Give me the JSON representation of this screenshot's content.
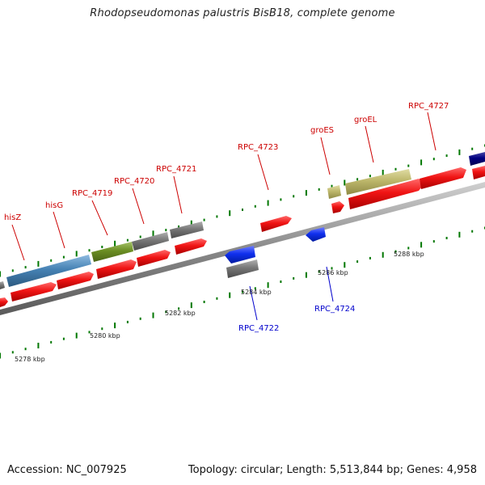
{
  "title": "Rhodopseudomonas palustris BisB18, complete genome",
  "footer": {
    "accession": "Accession: NC_007925",
    "summary": "Topology: circular; Length: 5,513,844 bp; Genes: 4,958"
  },
  "colors": {
    "cds": "#ee1111",
    "blue_gene": "#1133ee",
    "gray_gene": "#777777",
    "steelblue_gene": "#4682b4",
    "olive_gene": "#6b8e23",
    "khaki_gene": "#bdb76b",
    "navy_gene": "#000080",
    "ticks": "#007700",
    "top_labels": "#cc0000",
    "bottom_labels": "#0000cc"
  },
  "kbp_ticks": [
    "5278 kbp",
    "5280 kbp",
    "5282 kbp",
    "5284 kbp",
    "5286 kbp",
    "5288 kbp"
  ],
  "gene_labels_top": [
    "hisZ",
    "hisG",
    "RPC_4719",
    "RPC_4720",
    "RPC_4721",
    "RPC_4723",
    "groES",
    "groEL",
    "RPC_4727"
  ],
  "gene_labels_bottom": [
    "RPC_4722",
    "RPC_4724"
  ]
}
